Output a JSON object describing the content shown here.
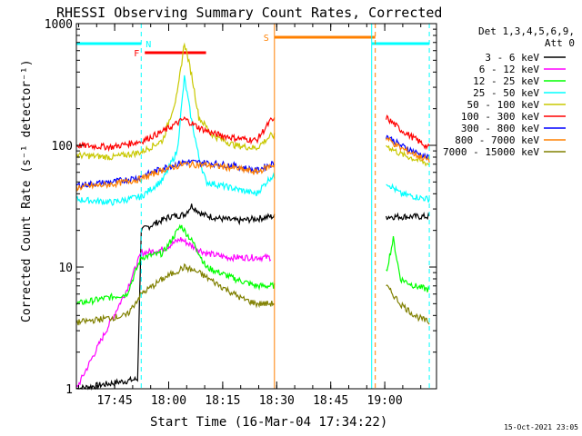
{
  "chart_data": {
    "type": "line",
    "title": "RHESSI Observing Summary Count Rates, Corrected",
    "xlabel": "Start Time (16-Mar-04 17:34:22)",
    "ylabel": "Corrected Count Rate (s⁻¹ detector⁻¹)",
    "yscale": "log",
    "ylim": [
      1,
      1000
    ],
    "xlim_minutes": [
      0,
      100
    ],
    "x_tick_labels": [
      "17:45",
      "18:00",
      "18:15",
      "18:30",
      "18:45",
      "19:00"
    ],
    "y_tick_labels": [
      "1",
      "10",
      "100",
      "1000"
    ],
    "legend_header": [
      "Det 1,3,4,5,6,9,",
      "Att 0"
    ],
    "legend_position": "top-right, outside plot",
    "timestamp": "15-Oct-2021 23:05",
    "annotations": [
      {
        "label": "N",
        "start": 0,
        "end": 18,
        "color": "#00ffff",
        "note": "night"
      },
      {
        "label": "F",
        "start": 19,
        "end": 36,
        "color": "#ff0000",
        "note": "flare flag"
      },
      {
        "label": "S",
        "start": 55,
        "end": 83,
        "color": "#ff8000",
        "note": "SAA"
      },
      {
        "label": "",
        "start": 82,
        "end": 98,
        "color": "#00ffff",
        "note": "night"
      }
    ],
    "data_gaps": [
      [
        55,
        86
      ]
    ],
    "series": [
      {
        "name": "3 - 6 keV",
        "color": "#000000",
        "points": [
          [
            0,
            1
          ],
          [
            17,
            1.2
          ],
          [
            18,
            20
          ],
          [
            22,
            23
          ],
          [
            26,
            26
          ],
          [
            30,
            27
          ],
          [
            32,
            32
          ],
          [
            35,
            27
          ],
          [
            40,
            25
          ],
          [
            45,
            24
          ],
          [
            50,
            25
          ],
          [
            54,
            26
          ],
          [
            86,
            26
          ],
          [
            98,
            26
          ]
        ]
      },
      {
        "name": "6 - 12 keV",
        "color": "#ff00ff",
        "points": [
          [
            0,
            1
          ],
          [
            14,
            6.5
          ],
          [
            18,
            13
          ],
          [
            24,
            14
          ],
          [
            29,
            17
          ],
          [
            32,
            15
          ],
          [
            36,
            13
          ],
          [
            42,
            12
          ],
          [
            48,
            12
          ],
          [
            54,
            12
          ]
        ]
      },
      {
        "name": "12 - 25 keV",
        "color": "#00ff00",
        "points": [
          [
            0,
            5
          ],
          [
            14,
            6
          ],
          [
            18,
            12
          ],
          [
            24,
            13
          ],
          [
            29,
            22
          ],
          [
            33,
            15
          ],
          [
            36,
            10
          ],
          [
            44,
            8
          ],
          [
            50,
            7
          ],
          [
            54,
            7
          ],
          [
            86,
            9
          ],
          [
            88,
            17
          ],
          [
            90,
            8
          ],
          [
            94,
            7
          ],
          [
            98,
            6.5
          ]
        ]
      },
      {
        "name": "25 - 50 keV",
        "color": "#00ffff",
        "points": [
          [
            0,
            36
          ],
          [
            10,
            34
          ],
          [
            18,
            38
          ],
          [
            24,
            52
          ],
          [
            28,
            90
          ],
          [
            30,
            360
          ],
          [
            32,
            160
          ],
          [
            34,
            80
          ],
          [
            36,
            50
          ],
          [
            44,
            44
          ],
          [
            50,
            40
          ],
          [
            54,
            55
          ],
          [
            86,
            50
          ],
          [
            90,
            40
          ],
          [
            98,
            36
          ]
        ]
      },
      {
        "name": "50 - 100 keV",
        "color": "#c8c800",
        "points": [
          [
            0,
            83
          ],
          [
            10,
            80
          ],
          [
            18,
            88
          ],
          [
            24,
            110
          ],
          [
            28,
            260
          ],
          [
            30,
            700
          ],
          [
            32,
            380
          ],
          [
            34,
            170
          ],
          [
            38,
            120
          ],
          [
            44,
            100
          ],
          [
            50,
            95
          ],
          [
            54,
            120
          ],
          [
            86,
            100
          ],
          [
            90,
            85
          ],
          [
            98,
            70
          ]
        ]
      },
      {
        "name": "100 - 300 keV",
        "color": "#ff0000",
        "points": [
          [
            0,
            100
          ],
          [
            10,
            97
          ],
          [
            18,
            108
          ],
          [
            24,
            130
          ],
          [
            30,
            165
          ],
          [
            34,
            140
          ],
          [
            38,
            125
          ],
          [
            44,
            115
          ],
          [
            50,
            110
          ],
          [
            54,
            160
          ],
          [
            86,
            170
          ],
          [
            90,
            135
          ],
          [
            98,
            95
          ]
        ]
      },
      {
        "name": "300 - 800 keV",
        "color": "#0000ff",
        "points": [
          [
            0,
            47
          ],
          [
            10,
            50
          ],
          [
            18,
            55
          ],
          [
            24,
            65
          ],
          [
            30,
            73
          ],
          [
            36,
            72
          ],
          [
            44,
            68
          ],
          [
            50,
            62
          ],
          [
            54,
            70
          ],
          [
            86,
            120
          ],
          [
            90,
            100
          ],
          [
            98,
            78
          ]
        ]
      },
      {
        "name": "800 - 7000 keV",
        "color": "#ff8000",
        "points": [
          [
            0,
            45
          ],
          [
            10,
            48
          ],
          [
            18,
            53
          ],
          [
            24,
            63
          ],
          [
            30,
            70
          ],
          [
            36,
            69
          ],
          [
            44,
            65
          ],
          [
            50,
            60
          ],
          [
            54,
            68
          ],
          [
            86,
            115
          ],
          [
            90,
            95
          ],
          [
            98,
            75
          ]
        ]
      },
      {
        "name": "7000 - 15000 keV",
        "color": "#808000",
        "points": [
          [
            0,
            3.5
          ],
          [
            14,
            4
          ],
          [
            18,
            6
          ],
          [
            24,
            8
          ],
          [
            30,
            10
          ],
          [
            34,
            9
          ],
          [
            40,
            7
          ],
          [
            46,
            5.5
          ],
          [
            50,
            5
          ],
          [
            54,
            5
          ],
          [
            86,
            7
          ],
          [
            90,
            5
          ],
          [
            94,
            4
          ],
          [
            98,
            3.5
          ]
        ]
      }
    ]
  }
}
